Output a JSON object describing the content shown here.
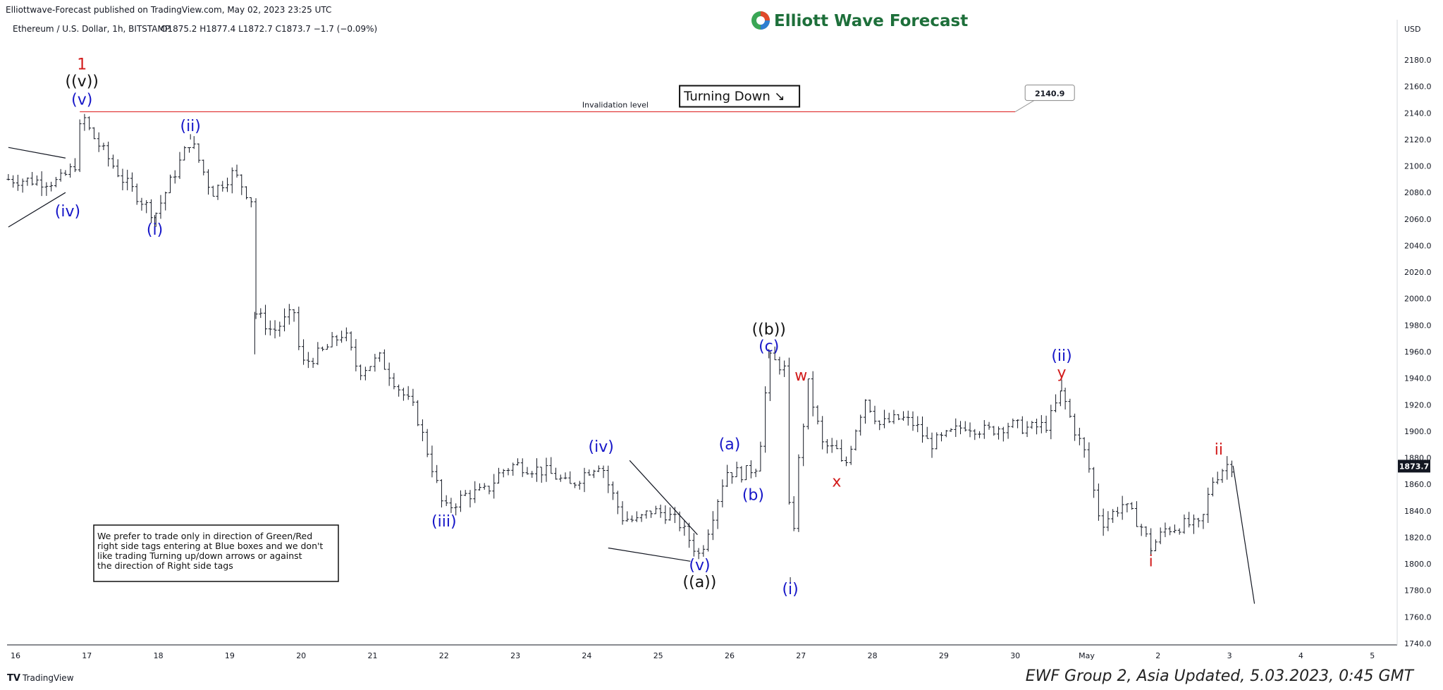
{
  "header": {
    "published": "Elliottwave-Forecast published on TradingView.com, May 02, 2023 23:25 UTC",
    "symbol": "Ethereum / U.S. Dollar, 1h, BITSTAMP",
    "ohlc": "O1875.2  H1877.4  L1872.7  C1873.7  −1.7 (−0.09%)",
    "brand": "Elliott Wave Forecast",
    "currency": "USD"
  },
  "footer": {
    "tradingview": "TradingView",
    "group": "EWF Group 2, Asia Updated, 5.03.2023, 0:45 GMT"
  },
  "note": {
    "lines": [
      "We prefer to trade only in direction of Green/Red",
      "right side tags entering at Blue boxes and we don't",
      "like trading Turning up/down arrows or against",
      "the direction of Right side tags"
    ]
  },
  "colors": {
    "blue_labels": "#1515c8",
    "red_labels": "#d21a1a",
    "invalidation_line": "#e03030",
    "candles": "#131722",
    "brand": "#1d6f3a"
  },
  "chart_data": {
    "type": "ohlc",
    "ylim": [
      1730,
      2200
    ],
    "yticks": [
      1740,
      1760,
      1780,
      1800,
      1820,
      1840,
      1860,
      1880,
      1900,
      1920,
      1940,
      1960,
      1980,
      2000,
      2020,
      2040,
      2060,
      2080,
      2100,
      2120,
      2140,
      2160,
      2180
    ],
    "x_ticks": [
      {
        "pos": 0,
        "label": "16"
      },
      {
        "pos": 1,
        "label": "17"
      },
      {
        "pos": 2,
        "label": "18"
      },
      {
        "pos": 3,
        "label": "19"
      },
      {
        "pos": 4,
        "label": "20"
      },
      {
        "pos": 5,
        "label": "21"
      },
      {
        "pos": 6,
        "label": "22"
      },
      {
        "pos": 7,
        "label": "23"
      },
      {
        "pos": 8,
        "label": "24"
      },
      {
        "pos": 9,
        "label": "25"
      },
      {
        "pos": 10,
        "label": "26"
      },
      {
        "pos": 11,
        "label": "27"
      },
      {
        "pos": 12,
        "label": "28"
      },
      {
        "pos": 13,
        "label": "29"
      },
      {
        "pos": 14,
        "label": "30"
      },
      {
        "pos": 15,
        "label": "May"
      },
      {
        "pos": 16,
        "label": "2"
      },
      {
        "pos": 17,
        "label": "3"
      },
      {
        "pos": 18,
        "label": "4"
      },
      {
        "pos": 19,
        "label": "5"
      }
    ],
    "price_path": [
      [
        -0.1,
        2090
      ],
      [
        0.6,
        2088
      ],
      [
        0.83,
        2100
      ],
      [
        0.93,
        2140
      ],
      [
        1.05,
        2125
      ],
      [
        1.5,
        2090
      ],
      [
        1.95,
        2063
      ],
      [
        2.45,
        2120
      ],
      [
        2.75,
        2080
      ],
      [
        3.05,
        2095
      ],
      [
        3.3,
        2075
      ],
      [
        3.35,
        1990
      ],
      [
        3.6,
        1975
      ],
      [
        3.9,
        1990
      ],
      [
        4.0,
        1950
      ],
      [
        4.3,
        1960
      ],
      [
        4.6,
        1975
      ],
      [
        4.8,
        1945
      ],
      [
        5.1,
        1955
      ],
      [
        5.4,
        1930
      ],
      [
        5.6,
        1915
      ],
      [
        5.85,
        1870
      ],
      [
        6.0,
        1840
      ],
      [
        6.3,
        1852
      ],
      [
        6.6,
        1855
      ],
      [
        6.8,
        1870
      ],
      [
        7.0,
        1875
      ],
      [
        7.4,
        1870
      ],
      [
        7.6,
        1865
      ],
      [
        7.75,
        1858
      ],
      [
        8.0,
        1870
      ],
      [
        8.2,
        1877
      ],
      [
        8.3,
        1860
      ],
      [
        8.5,
        1835
      ],
      [
        8.7,
        1832
      ],
      [
        8.9,
        1840
      ],
      [
        9.1,
        1838
      ],
      [
        9.3,
        1830
      ],
      [
        9.58,
        1806
      ],
      [
        9.75,
        1835
      ],
      [
        9.95,
        1870
      ],
      [
        10.2,
        1868
      ],
      [
        10.4,
        1875
      ],
      [
        10.55,
        1955
      ],
      [
        10.7,
        1950
      ],
      [
        10.8,
        1945
      ],
      [
        10.85,
        1790
      ],
      [
        10.95,
        1870
      ],
      [
        11.1,
        1935
      ],
      [
        11.3,
        1890
      ],
      [
        11.5,
        1885
      ],
      [
        11.6,
        1870
      ],
      [
        11.75,
        1900
      ],
      [
        11.9,
        1925
      ],
      [
        12.1,
        1905
      ],
      [
        12.4,
        1910
      ],
      [
        12.6,
        1905
      ],
      [
        12.8,
        1890
      ],
      [
        13.0,
        1895
      ],
      [
        13.3,
        1905
      ],
      [
        13.6,
        1900
      ],
      [
        13.9,
        1905
      ],
      [
        14.2,
        1902
      ],
      [
        14.45,
        1905
      ],
      [
        14.65,
        1930
      ],
      [
        14.8,
        1905
      ],
      [
        15.0,
        1880
      ],
      [
        15.2,
        1830
      ],
      [
        15.5,
        1845
      ],
      [
        15.75,
        1830
      ],
      [
        15.9,
        1812
      ],
      [
        16.1,
        1826
      ],
      [
        16.4,
        1830
      ],
      [
        16.6,
        1828
      ],
      [
        16.75,
        1862
      ],
      [
        16.95,
        1875
      ],
      [
        17.05,
        1874
      ]
    ],
    "projection": {
      "from": [
        17.05,
        1874
      ],
      "to": [
        17.35,
        1770
      ]
    },
    "last_price": {
      "value": 1873.7,
      "label": "1873.7"
    },
    "invalidation": {
      "value": 2140.9,
      "label": "Invalidation level",
      "tag": "2140.9",
      "x_end": 14.0
    },
    "turning_box": {
      "text": "Turning Down",
      "arrow": "↘"
    },
    "wave_labels": [
      {
        "text": "1",
        "x": 0.93,
        "y": 2140,
        "color": "red",
        "dy": -62
      },
      {
        "text": "((v))",
        "x": 0.93,
        "y": 2140,
        "color": "black",
        "dy": -38
      },
      {
        "text": "(v)",
        "x": 0.93,
        "y": 2140,
        "color": "blue",
        "dy": -12
      },
      {
        "text": "(iv)",
        "x": 0.73,
        "y": 2078,
        "color": "blue",
        "dy": 30
      },
      {
        "text": "(i)",
        "x": 1.95,
        "y": 2063,
        "color": "blue",
        "dy": 28
      },
      {
        "text": "(ii)",
        "x": 2.45,
        "y": 2120,
        "color": "blue",
        "dy": -12
      },
      {
        "text": "(iii)",
        "x": 6.0,
        "y": 1840,
        "color": "blue",
        "dy": 22
      },
      {
        "text": "(iv)",
        "x": 8.2,
        "y": 1877,
        "color": "blue",
        "dy": -14
      },
      {
        "text": "(v)",
        "x": 9.58,
        "y": 1806,
        "color": "blue",
        "dy": 20
      },
      {
        "text": "((a))",
        "x": 9.58,
        "y": 1806,
        "color": "black",
        "dy": 44
      },
      {
        "text": "(a)",
        "x": 10.0,
        "y": 1880,
        "color": "blue",
        "dy": -12
      },
      {
        "text": "(b)",
        "x": 10.33,
        "y": 1862,
        "color": "blue",
        "dy": 26
      },
      {
        "text": "(c)",
        "x": 10.55,
        "y": 1955,
        "color": "blue",
        "dy": -10
      },
      {
        "text": "((b))",
        "x": 10.55,
        "y": 1955,
        "color": "black",
        "dy": -34
      },
      {
        "text": "w",
        "x": 11.0,
        "y": 1935,
        "color": "red",
        "dy": -6
      },
      {
        "text": "x",
        "x": 11.5,
        "y": 1872,
        "color": "red",
        "dy": 26
      },
      {
        "text": "(i)",
        "x": 10.85,
        "y": 1790,
        "color": "blue",
        "dy": 24
      },
      {
        "text": "(ii)",
        "x": 14.65,
        "y": 1935,
        "color": "blue",
        "dy": -34
      },
      {
        "text": "y",
        "x": 14.65,
        "y": 1935,
        "color": "red",
        "dy": -10
      },
      {
        "text": "i",
        "x": 15.9,
        "y": 1812,
        "color": "red",
        "dy": 26
      },
      {
        "text": "ii",
        "x": 16.85,
        "y": 1877,
        "color": "red",
        "dy": -10
      }
    ],
    "triangles": [
      {
        "upper": [
          [
            -0.1,
            2114
          ],
          [
            0.7,
            2106
          ]
        ],
        "lower": [
          [
            -0.1,
            2054
          ],
          [
            0.7,
            2080
          ]
        ]
      },
      {
        "upper": [
          [
            8.6,
            1878
          ],
          [
            9.55,
            1822
          ]
        ],
        "lower": [
          [
            8.3,
            1812
          ],
          [
            9.45,
            1802
          ]
        ]
      }
    ]
  }
}
